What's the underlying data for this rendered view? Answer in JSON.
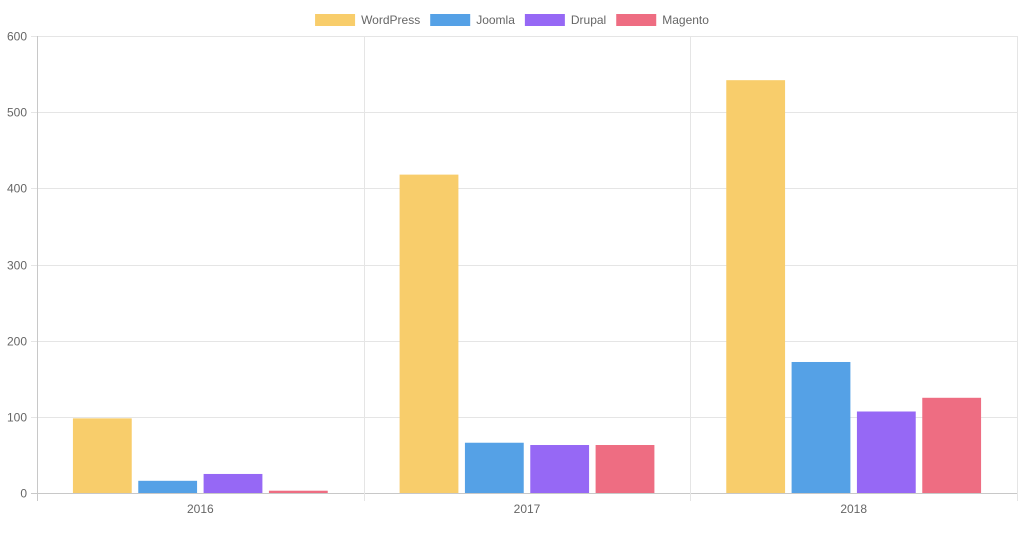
{
  "chart_data": {
    "type": "bar",
    "title": "",
    "xlabel": "",
    "ylabel": "",
    "categories": [
      "2016",
      "2017",
      "2018"
    ],
    "ylim": [
      0,
      600
    ],
    "yticks": [
      0,
      100,
      200,
      300,
      400,
      500,
      600
    ],
    "grid": true,
    "legend_position": "top",
    "series": [
      {
        "name": "WordPress",
        "color": "#f8cd6b",
        "values": [
          98,
          418,
          542
        ]
      },
      {
        "name": "Joomla",
        "color": "#55a1e6",
        "values": [
          16,
          66,
          172
        ]
      },
      {
        "name": "Drupal",
        "color": "#9668f5",
        "values": [
          25,
          63,
          107
        ]
      },
      {
        "name": "Magento",
        "color": "#ee6d82",
        "values": [
          3,
          63,
          125
        ]
      }
    ]
  }
}
